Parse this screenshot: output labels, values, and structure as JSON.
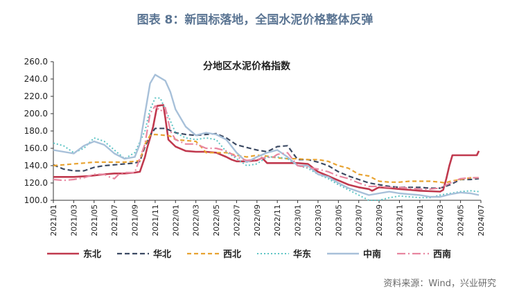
{
  "figure_title": "图表 8：新国标落地，全国水泥价格整体反弹",
  "source": "资料来源：Wind，兴业研究",
  "chart_data": {
    "type": "line",
    "title": "分地区水泥价格指数",
    "xlabel": "",
    "ylabel": "",
    "ylim": [
      100,
      260
    ],
    "yticks": [
      "260.0",
      "240.0",
      "220.0",
      "200.0",
      "180.0",
      "160.0",
      "140.0",
      "120.0",
      "100.0"
    ],
    "xticks": [
      "2021/01",
      "2021/03",
      "2021/05",
      "2021/07",
      "2021/09",
      "2021/11",
      "2022/01",
      "2022/03",
      "2022/05",
      "2022/07",
      "2022/09",
      "2022/11",
      "2023/01",
      "2023/03",
      "2023/05",
      "2023/07",
      "2023/09",
      "2023/11",
      "2024/01",
      "2024/03",
      "2024/05",
      "2024/07"
    ],
    "x_start": "2021/01",
    "x_end": "2024/07",
    "grid": false,
    "legend_position": "bottom",
    "series": [
      {
        "name": "东北",
        "color": "#c0394e",
        "dash": "",
        "width": 2.6,
        "values": [
          [
            0,
            127
          ],
          [
            2,
            127
          ],
          [
            3.5,
            128
          ],
          [
            5,
            130
          ],
          [
            6,
            131
          ],
          [
            7,
            131
          ],
          [
            8,
            132
          ],
          [
            8.5,
            133
          ],
          [
            9,
            150
          ],
          [
            9.2,
            160
          ],
          [
            9.5,
            172
          ],
          [
            9.8,
            185
          ],
          [
            10.2,
            209
          ],
          [
            10.8,
            210
          ],
          [
            11,
            195
          ],
          [
            11.3,
            170
          ],
          [
            12,
            162
          ],
          [
            13,
            157
          ],
          [
            14,
            156
          ],
          [
            15,
            156
          ],
          [
            16,
            155
          ],
          [
            17,
            150
          ],
          [
            17.5,
            147
          ],
          [
            18,
            145
          ],
          [
            19,
            145
          ],
          [
            20,
            146
          ],
          [
            20.5,
            149
          ],
          [
            21,
            143
          ],
          [
            22,
            143
          ],
          [
            23,
            143
          ],
          [
            24,
            143
          ],
          [
            25,
            142
          ],
          [
            26,
            133
          ],
          [
            27,
            128
          ],
          [
            28,
            123
          ],
          [
            29,
            118
          ],
          [
            30,
            115
          ],
          [
            31,
            113
          ],
          [
            31.3,
            111
          ],
          [
            31.5,
            112
          ],
          [
            31.8,
            114
          ],
          [
            32,
            115
          ],
          [
            33,
            114
          ],
          [
            34,
            113
          ],
          [
            35,
            112
          ],
          [
            36,
            111
          ],
          [
            38,
            110
          ],
          [
            38.3,
            112
          ],
          [
            38.6,
            125
          ],
          [
            38.9,
            140
          ],
          [
            39.2,
            152
          ],
          [
            41.6,
            152
          ],
          [
            41.8,
            157
          ]
        ]
      },
      {
        "name": "华北",
        "color": "#3c4a63",
        "dash": "7,4",
        "width": 2.2,
        "values": [
          [
            0,
            141
          ],
          [
            1,
            136
          ],
          [
            2,
            134
          ],
          [
            3,
            134
          ],
          [
            4,
            138
          ],
          [
            5,
            140
          ],
          [
            6,
            141
          ],
          [
            7,
            142
          ],
          [
            8,
            143
          ],
          [
            8.5,
            145
          ],
          [
            9,
            162
          ],
          [
            9.5,
            175
          ],
          [
            10,
            183
          ],
          [
            11,
            183
          ],
          [
            12,
            178
          ],
          [
            13,
            176
          ],
          [
            14,
            175
          ],
          [
            15,
            176
          ],
          [
            16,
            177
          ],
          [
            17,
            172
          ],
          [
            18,
            164
          ],
          [
            19,
            161
          ],
          [
            20,
            158
          ],
          [
            21,
            156
          ],
          [
            22,
            162
          ],
          [
            23,
            163
          ],
          [
            24,
            147
          ],
          [
            25,
            147
          ],
          [
            26,
            144
          ],
          [
            27,
            140
          ],
          [
            28,
            133
          ],
          [
            29,
            128
          ],
          [
            30,
            124
          ],
          [
            31,
            120
          ],
          [
            32,
            118
          ],
          [
            33,
            116
          ],
          [
            34,
            115
          ],
          [
            35,
            115
          ],
          [
            36,
            115
          ],
          [
            37,
            114
          ],
          [
            38,
            114
          ],
          [
            39,
            118
          ],
          [
            40,
            124
          ],
          [
            41,
            124
          ],
          [
            41.8,
            125
          ]
        ]
      },
      {
        "name": "西北",
        "color": "#e8a331",
        "dash": "6,4",
        "width": 2.2,
        "values": [
          [
            0,
            140
          ],
          [
            1,
            141
          ],
          [
            2,
            142
          ],
          [
            3,
            143
          ],
          [
            4,
            144
          ],
          [
            5,
            144
          ],
          [
            6,
            144
          ],
          [
            7,
            144
          ],
          [
            8,
            145
          ],
          [
            8.5,
            146
          ],
          [
            9,
            165
          ],
          [
            9.5,
            175
          ],
          [
            10,
            176
          ],
          [
            11,
            175
          ],
          [
            11.5,
            174
          ],
          [
            12,
            170
          ],
          [
            13,
            169
          ],
          [
            14,
            168
          ],
          [
            14.5,
            162
          ],
          [
            15,
            155
          ],
          [
            16,
            155
          ],
          [
            17,
            155
          ],
          [
            18,
            152
          ],
          [
            19,
            150
          ],
          [
            20,
            152
          ],
          [
            21,
            151
          ],
          [
            22,
            149
          ],
          [
            23,
            148
          ],
          [
            24,
            148
          ],
          [
            25,
            147
          ],
          [
            26,
            147
          ],
          [
            27,
            145
          ],
          [
            28,
            140
          ],
          [
            29,
            137
          ],
          [
            30,
            130
          ],
          [
            31,
            128
          ],
          [
            31.5,
            125
          ],
          [
            32,
            122
          ],
          [
            33,
            121
          ],
          [
            34,
            121
          ],
          [
            35,
            122
          ],
          [
            36,
            122
          ],
          [
            37,
            122
          ],
          [
            38,
            121
          ],
          [
            38.5,
            120
          ],
          [
            39,
            122
          ],
          [
            40,
            124
          ],
          [
            41,
            126
          ],
          [
            41.8,
            126
          ]
        ]
      },
      {
        "name": "华东",
        "color": "#5cc4c4",
        "dash": "2,3",
        "width": 2,
        "values": [
          [
            0,
            166
          ],
          [
            1,
            163
          ],
          [
            2,
            155
          ],
          [
            3,
            160
          ],
          [
            4,
            172
          ],
          [
            5,
            168
          ],
          [
            6,
            158
          ],
          [
            7,
            148
          ],
          [
            8,
            155
          ],
          [
            9,
            180
          ],
          [
            9.5,
            205
          ],
          [
            10,
            218
          ],
          [
            10.5,
            218
          ],
          [
            11,
            205
          ],
          [
            12,
            178
          ],
          [
            13,
            172
          ],
          [
            14,
            170
          ],
          [
            15,
            172
          ],
          [
            16,
            170
          ],
          [
            17,
            156
          ],
          [
            18,
            148
          ],
          [
            19,
            140
          ],
          [
            20,
            142
          ],
          [
            21,
            150
          ],
          [
            22,
            150
          ],
          [
            23,
            148
          ],
          [
            24,
            140
          ],
          [
            25,
            137
          ],
          [
            26,
            130
          ],
          [
            27,
            125
          ],
          [
            28,
            118
          ],
          [
            29,
            112
          ],
          [
            30,
            106
          ],
          [
            31,
            100
          ],
          [
            32,
            100
          ],
          [
            33,
            103
          ],
          [
            34,
            105
          ],
          [
            35,
            104
          ],
          [
            36,
            103
          ],
          [
            37,
            103
          ],
          [
            38,
            106
          ],
          [
            39,
            108
          ],
          [
            40,
            110
          ],
          [
            41,
            111
          ],
          [
            41.8,
            110
          ]
        ]
      },
      {
        "name": "中南",
        "color": "#a7c0d9",
        "dash": "",
        "width": 2.4,
        "values": [
          [
            0,
            158
          ],
          [
            1,
            156
          ],
          [
            2,
            154
          ],
          [
            3,
            163
          ],
          [
            4,
            168
          ],
          [
            5,
            164
          ],
          [
            6,
            154
          ],
          [
            7,
            148
          ],
          [
            8,
            150
          ],
          [
            8.5,
            165
          ],
          [
            9,
            200
          ],
          [
            9.5,
            235
          ],
          [
            10,
            245
          ],
          [
            11,
            238
          ],
          [
            11.5,
            225
          ],
          [
            12,
            205
          ],
          [
            13,
            185
          ],
          [
            14,
            175
          ],
          [
            15,
            178
          ],
          [
            16,
            176
          ],
          [
            17,
            170
          ],
          [
            18,
            155
          ],
          [
            19,
            144
          ],
          [
            20,
            150
          ],
          [
            21,
            155
          ],
          [
            22,
            158
          ],
          [
            23,
            150
          ],
          [
            24,
            140
          ],
          [
            25,
            140
          ],
          [
            26,
            130
          ],
          [
            27,
            127
          ],
          [
            28,
            120
          ],
          [
            29,
            114
          ],
          [
            30,
            110
          ],
          [
            31,
            106
          ],
          [
            32,
            108
          ],
          [
            33,
            110
          ],
          [
            34,
            108
          ],
          [
            35,
            107
          ],
          [
            36,
            106
          ],
          [
            37,
            104
          ],
          [
            38,
            104
          ],
          [
            39,
            107
          ],
          [
            40,
            109
          ],
          [
            41,
            108
          ],
          [
            41.8,
            106
          ]
        ]
      },
      {
        "name": "西南",
        "color": "#e886a0",
        "dash": "12,4,2,4",
        "width": 2.2,
        "values": [
          [
            0,
            124
          ],
          [
            1,
            123
          ],
          [
            2,
            124
          ],
          [
            3,
            126
          ],
          [
            4,
            130
          ],
          [
            5,
            130
          ],
          [
            5.5,
            127
          ],
          [
            6,
            125
          ],
          [
            6.5,
            131
          ],
          [
            7,
            132
          ],
          [
            8,
            132
          ],
          [
            9,
            165
          ],
          [
            9.5,
            200
          ],
          [
            10,
            209
          ],
          [
            10.5,
            203
          ],
          [
            11,
            207
          ],
          [
            11.5,
            180
          ],
          [
            12,
            170
          ],
          [
            13,
            165
          ],
          [
            14,
            165
          ],
          [
            15,
            160
          ],
          [
            16,
            160
          ],
          [
            17,
            157
          ],
          [
            18,
            150
          ],
          [
            19,
            146
          ],
          [
            20,
            147
          ],
          [
            21,
            150
          ],
          [
            21.5,
            149
          ],
          [
            22,
            153
          ],
          [
            23,
            155
          ],
          [
            24,
            140
          ],
          [
            25,
            138
          ],
          [
            26,
            136
          ],
          [
            27,
            133
          ],
          [
            28,
            128
          ],
          [
            29,
            125
          ],
          [
            30,
            120
          ],
          [
            31,
            116
          ],
          [
            32,
            116
          ],
          [
            33,
            115
          ],
          [
            34,
            115
          ],
          [
            35,
            114
          ],
          [
            36,
            113
          ],
          [
            37,
            113
          ],
          [
            38,
            114
          ],
          [
            39,
            120
          ],
          [
            40,
            125
          ],
          [
            41,
            126
          ],
          [
            41.8,
            126
          ]
        ]
      }
    ]
  }
}
